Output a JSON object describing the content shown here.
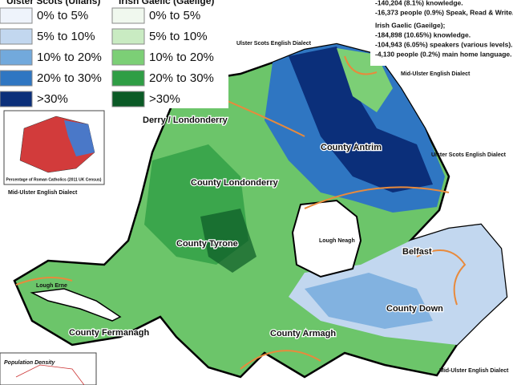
{
  "legend": {
    "columns": [
      {
        "title": "Ulster Scots (Ullans)",
        "items": [
          {
            "label": "0% to 5%",
            "color": "#eef3fb"
          },
          {
            "label": "5% to 10%",
            "color": "#c2d7ef"
          },
          {
            "label": "10% to 20%",
            "color": "#72a9dc"
          },
          {
            "label": "20% to 30%",
            "color": "#2f76c2"
          },
          {
            "label": ">30%",
            "color": "#0b2f7a"
          }
        ]
      },
      {
        "title": "Irish Gaelic (Gaeilge)",
        "items": [
          {
            "label": "0% to 5%",
            "color": "#f0f8ee"
          },
          {
            "label": "5% to 10%",
            "color": "#c9ebc2"
          },
          {
            "label": "10% to 20%",
            "color": "#7ccf76"
          },
          {
            "label": "20% to 30%",
            "color": "#2f9e45"
          },
          {
            "label": ">30%",
            "color": "#0b5a26"
          }
        ]
      }
    ]
  },
  "stats": {
    "ulster_scots": [
      "-140,204 (8.1%) knowledge.",
      "-16,373 people (0.9%) Speak, Read & Write."
    ],
    "irish_heading": "Irish Gaelic (Gaeilge);",
    "irish_gaelic": [
      "-184,898 (10.65%) knowledge.",
      "-104,943 (6.05%) speakers (various levels).",
      "-4,130 people (0.2%) main home language."
    ]
  },
  "labels": {
    "dialect_scots_north": "Ulster Scots English Dialect",
    "dialect_mid_north": "Mid-Ulster English Dialect",
    "dialect_scots_east": "Ulster Scots English Dialect",
    "dialect_mid_west": "Mid-Ulster English Dialect",
    "dialect_mid_south": "Mid-Ulster English Dialect",
    "derry": "Derry / Londonderry",
    "antrim": "County Antrim",
    "londonderry": "County Londonderry",
    "tyrone": "County Tyrone",
    "lough_neagh": "Lough Neagh",
    "belfast": "Belfast",
    "down": "County Down",
    "armagh": "County Armagh",
    "fermanagh": "County Fermanagh",
    "lough_erne": "Lough Erne",
    "population_density": "Population Density",
    "inset_caption": "Percentage of Roman Catholics (2011 UK Census)"
  }
}
